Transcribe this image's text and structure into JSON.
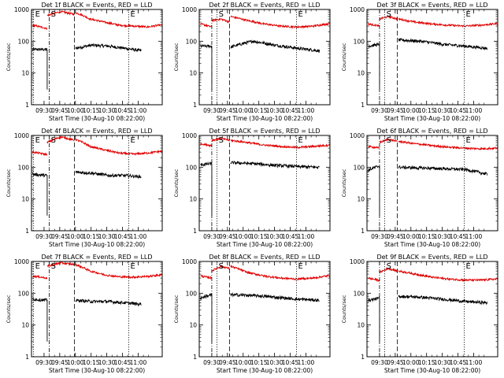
{
  "figure": {
    "colors": {
      "events": "#000000",
      "lld": "#e00000",
      "background": "#ffffff",
      "axis": "#000000"
    },
    "ylabel": "Counts/sec",
    "xlabel": "Start Time (30-Aug-10 08:22:00)",
    "xticks": [
      "09:30",
      "09:45",
      "10:00",
      "10:15",
      "10:30",
      "10:45",
      "11:00"
    ],
    "yticks": [
      "1",
      "10",
      "100",
      "1000"
    ]
  },
  "chart_data": [
    {
      "type": "line",
      "title": "Det 1f BLACK = Events, RED = LLD",
      "x_range_minutes": [
        -15,
        110
      ],
      "ylim": [
        1,
        1000
      ],
      "yscale": "log",
      "markers": [
        {
          "label": "E",
          "minute": -13,
          "style": "dotted"
        },
        {
          "label": "S",
          "minute": 2,
          "style": "dashdot"
        },
        {
          "label": "",
          "minute": 26,
          "style": "dashed"
        },
        {
          "label": "E",
          "minute": 78,
          "style": "dotted"
        }
      ],
      "series": [
        {
          "name": "Events",
          "segments": [
            {
              "x_min": [
                -14,
                0
              ],
              "y": [
                55,
                55
              ]
            },
            {
              "x_min": [
                27,
                90
              ],
              "y": [
                60,
                75,
                70,
                60,
                50
              ]
            }
          ]
        },
        {
          "name": "LLD",
          "segments": [
            {
              "x_min": [
                -14,
                0
              ],
              "y": [
                320,
                250
              ]
            },
            {
              "x_min": [
                0,
                26
              ],
              "y": [
                650,
                850,
                700
              ]
            },
            {
              "x_min": [
                27,
                110
              ],
              "y": [
                800,
                500,
                400,
                320,
                300,
                280,
                330
              ]
            }
          ]
        }
      ]
    },
    {
      "type": "line",
      "title": "Det 2f BLACK = Events, RED = LLD",
      "x_range_minutes": [
        -15,
        110
      ],
      "ylim": [
        1,
        1000
      ],
      "yscale": "log",
      "markers": [
        {
          "label": "",
          "minute": -3,
          "style": "dashdot"
        },
        {
          "label": "S",
          "minute": 2,
          "style": "dotted"
        },
        {
          "label": "",
          "minute": 14,
          "style": "dashed"
        },
        {
          "label": "E",
          "minute": 78,
          "style": "dotted"
        }
      ],
      "series": [
        {
          "name": "Events",
          "segments": [
            {
              "x_min": [
                -14,
                -3
              ],
              "y": [
                70,
                70
              ]
            },
            {
              "x_min": [
                15,
                100
              ],
              "y": [
                65,
                100,
                75,
                60,
                50
              ]
            }
          ]
        },
        {
          "name": "LLD",
          "segments": [
            {
              "x_min": [
                -14,
                -3
              ],
              "y": [
                350,
                280
              ]
            },
            {
              "x_min": [
                -3,
                14
              ],
              "y": [
                450,
                500,
                400
              ]
            },
            {
              "x_min": [
                15,
                110
              ],
              "y": [
                600,
                450,
                350,
                300,
                280,
                300,
                360
              ]
            }
          ]
        }
      ]
    },
    {
      "type": "line",
      "title": "Det 3f BLACK = Events, RED = LLD",
      "x_range_minutes": [
        -15,
        110
      ],
      "ylim": [
        1,
        1000
      ],
      "yscale": "log",
      "markers": [
        {
          "label": "",
          "minute": -3,
          "style": "dashdot"
        },
        {
          "label": "S",
          "minute": 2,
          "style": "dotted"
        },
        {
          "label": "",
          "minute": 14,
          "style": "dashed"
        },
        {
          "label": "E",
          "minute": 78,
          "style": "dotted"
        }
      ],
      "series": [
        {
          "name": "Events",
          "segments": [
            {
              "x_min": [
                -14,
                -3
              ],
              "y": [
                70,
                80
              ]
            },
            {
              "x_min": [
                15,
                100
              ],
              "y": [
                110,
                100,
                80,
                70,
                60
              ]
            }
          ]
        },
        {
          "name": "LLD",
          "segments": [
            {
              "x_min": [
                -14,
                -3
              ],
              "y": [
                350,
                300
              ]
            },
            {
              "x_min": [
                -3,
                14
              ],
              "y": [
                500,
                600,
                500
              ]
            },
            {
              "x_min": [
                15,
                110
              ],
              "y": [
                500,
                400,
                350,
                320,
                300,
                320,
                360
              ]
            }
          ]
        }
      ]
    },
    {
      "type": "line",
      "title": "Det 4f BLACK = Events, RED = LLD",
      "x_range_minutes": [
        -15,
        110
      ],
      "ylim": [
        1,
        1000
      ],
      "yscale": "log",
      "markers": [
        {
          "label": "E",
          "minute": -13,
          "style": "dotted"
        },
        {
          "label": "S",
          "minute": 2,
          "style": "dashdot"
        },
        {
          "label": "",
          "minute": 26,
          "style": "dashed"
        },
        {
          "label": "E",
          "minute": 78,
          "style": "dotted"
        }
      ],
      "series": [
        {
          "name": "Events",
          "segments": [
            {
              "x_min": [
                -14,
                0
              ],
              "y": [
                60,
                55
              ]
            },
            {
              "x_min": [
                27,
                90
              ],
              "y": [
                70,
                65,
                55,
                55,
                50
              ]
            }
          ]
        },
        {
          "name": "LLD",
          "segments": [
            {
              "x_min": [
                -14,
                0
              ],
              "y": [
                300,
                250
              ]
            },
            {
              "x_min": [
                0,
                26
              ],
              "y": [
                600,
                900,
                700
              ]
            },
            {
              "x_min": [
                27,
                110
              ],
              "y": [
                750,
                450,
                350,
                280,
                260,
                280,
                320
              ]
            }
          ]
        }
      ]
    },
    {
      "type": "line",
      "title": "Det 5f BLACK = Events, RED = LLD",
      "x_range_minutes": [
        -15,
        110
      ],
      "ylim": [
        1,
        1000
      ],
      "yscale": "log",
      "markers": [
        {
          "label": "",
          "minute": -3,
          "style": "dashdot"
        },
        {
          "label": "S",
          "minute": 2,
          "style": "dotted"
        },
        {
          "label": "",
          "minute": 14,
          "style": "dashed"
        },
        {
          "label": "E",
          "minute": 78,
          "style": "dotted"
        }
      ],
      "series": [
        {
          "name": "Events",
          "segments": [
            {
              "x_min": [
                -14,
                -3
              ],
              "y": [
                120,
                130
              ]
            },
            {
              "x_min": [
                15,
                100
              ],
              "y": [
                140,
                130,
                115,
                105,
                100
              ]
            }
          ]
        },
        {
          "name": "LLD",
          "segments": [
            {
              "x_min": [
                -14,
                -3
              ],
              "y": [
                550,
                480
              ]
            },
            {
              "x_min": [
                -3,
                14
              ],
              "y": [
                700,
                800,
                700
              ]
            },
            {
              "x_min": [
                15,
                110
              ],
              "y": [
                700,
                600,
                500,
                450,
                420,
                450,
                500
              ]
            }
          ]
        }
      ]
    },
    {
      "type": "line",
      "title": "Det 6f BLACK = Events, RED = LLD",
      "x_range_minutes": [
        -15,
        110
      ],
      "ylim": [
        1,
        1000
      ],
      "yscale": "log",
      "markers": [
        {
          "label": "",
          "minute": -3,
          "style": "dashdot"
        },
        {
          "label": "S",
          "minute": 2,
          "style": "dotted"
        },
        {
          "label": "",
          "minute": 14,
          "style": "dashed"
        },
        {
          "label": "E",
          "minute": 78,
          "style": "dotted"
        }
      ],
      "series": [
        {
          "name": "Events",
          "segments": [
            {
              "x_min": [
                -14,
                -3
              ],
              "y": [
                80,
                110
              ]
            },
            {
              "x_min": [
                15,
                100
              ],
              "y": [
                100,
                95,
                90,
                85,
                60
              ]
            }
          ]
        },
        {
          "name": "LLD",
          "segments": [
            {
              "x_min": [
                -14,
                -3
              ],
              "y": [
                450,
                400
              ]
            },
            {
              "x_min": [
                -3,
                14
              ],
              "y": [
                600,
                750,
                650
              ]
            },
            {
              "x_min": [
                15,
                110
              ],
              "y": [
                650,
                550,
                480,
                430,
                400,
                380,
                400
              ]
            }
          ]
        }
      ]
    },
    {
      "type": "line",
      "title": "Det 7f BLACK = Events, RED = LLD",
      "x_range_minutes": [
        -15,
        110
      ],
      "ylim": [
        1,
        1000
      ],
      "yscale": "log",
      "markers": [
        {
          "label": "E",
          "minute": -13,
          "style": "dotted"
        },
        {
          "label": "S",
          "minute": 2,
          "style": "dashdot"
        },
        {
          "label": "",
          "minute": 26,
          "style": "dashed"
        },
        {
          "label": "E",
          "minute": 78,
          "style": "dotted"
        }
      ],
      "series": [
        {
          "name": "Events",
          "segments": [
            {
              "x_min": [
                -14,
                0
              ],
              "y": [
                65,
                60
              ]
            },
            {
              "x_min": [
                27,
                90
              ],
              "y": [
                60,
                55,
                55,
                50,
                45
              ]
            }
          ]
        },
        {
          "name": "LLD",
          "segments": [
            {
              "x_min": [
                -14,
                0
              ],
              "y": [
                350,
                300
              ]
            },
            {
              "x_min": [
                0,
                26
              ],
              "y": [
                700,
                900,
                800
              ]
            },
            {
              "x_min": [
                27,
                110
              ],
              "y": [
                800,
                500,
                380,
                330,
                320,
                340,
                380
              ]
            }
          ]
        }
      ]
    },
    {
      "type": "line",
      "title": "Det 8f BLACK = Events, RED = LLD",
      "x_range_minutes": [
        -15,
        110
      ],
      "ylim": [
        1,
        1000
      ],
      "yscale": "log",
      "markers": [
        {
          "label": "",
          "minute": -3,
          "style": "dashdot"
        },
        {
          "label": "S",
          "minute": 2,
          "style": "dotted"
        },
        {
          "label": "",
          "minute": 14,
          "style": "dashed"
        },
        {
          "label": "E",
          "minute": 78,
          "style": "dotted"
        }
      ],
      "series": [
        {
          "name": "Events",
          "segments": [
            {
              "x_min": [
                -14,
                -3
              ],
              "y": [
                70,
                90
              ]
            },
            {
              "x_min": [
                15,
                100
              ],
              "y": [
                90,
                85,
                75,
                65,
                60
              ]
            }
          ]
        },
        {
          "name": "LLD",
          "segments": [
            {
              "x_min": [
                -14,
                -3
              ],
              "y": [
                350,
                300
              ]
            },
            {
              "x_min": [
                -3,
                14
              ],
              "y": [
                500,
                700,
                600
              ]
            },
            {
              "x_min": [
                15,
                110
              ],
              "y": [
                700,
                450,
                350,
                300,
                280,
                300,
                360
              ]
            }
          ]
        }
      ]
    },
    {
      "type": "line",
      "title": "Det 9f BLACK = Events, RED = LLD",
      "x_range_minutes": [
        -15,
        110
      ],
      "ylim": [
        1,
        1000
      ],
      "yscale": "log",
      "markers": [
        {
          "label": "",
          "minute": -3,
          "style": "dashdot"
        },
        {
          "label": "S",
          "minute": 2,
          "style": "dotted"
        },
        {
          "label": "",
          "minute": 14,
          "style": "dashed"
        },
        {
          "label": "E",
          "minute": 78,
          "style": "dotted"
        }
      ],
      "series": [
        {
          "name": "Events",
          "segments": [
            {
              "x_min": [
                -14,
                -3
              ],
              "y": [
                60,
                70
              ]
            },
            {
              "x_min": [
                15,
                100
              ],
              "y": [
                80,
                75,
                65,
                55,
                50
              ]
            }
          ]
        },
        {
          "name": "LLD",
          "segments": [
            {
              "x_min": [
                -14,
                -3
              ],
              "y": [
                300,
                250
              ]
            },
            {
              "x_min": [
                -3,
                14
              ],
              "y": [
                450,
                600,
                500
              ]
            },
            {
              "x_min": [
                15,
                110
              ],
              "y": [
                500,
                400,
                320,
                280,
                260,
                260,
                280
              ]
            }
          ]
        }
      ]
    }
  ]
}
